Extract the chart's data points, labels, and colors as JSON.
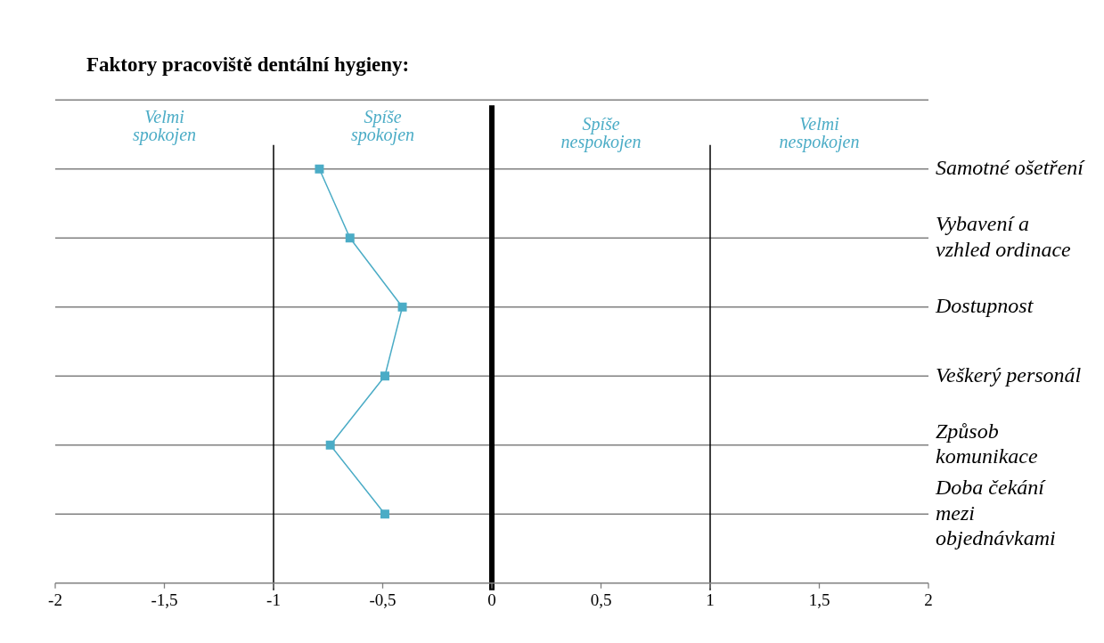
{
  "chart_data": {
    "type": "line",
    "orientation": "horizontal",
    "title": "Faktory pracoviště dentální hygieny:",
    "categories": [
      "Samotné ošetření",
      "Vybavení a vzhled ordinace",
      "Dostupnost",
      "Veškerý personál",
      "Způsob komunikace",
      "Doba čekání mezi objednávkami"
    ],
    "values": [
      -0.79,
      -0.65,
      -0.41,
      -0.49,
      -0.74,
      -0.49
    ],
    "color": "#4bacc6",
    "marker": "square",
    "line_style": "solid",
    "grid": "y",
    "legend": false,
    "xlim": [
      -2,
      2
    ],
    "xticks": [
      -2,
      {
        "value": -1.5,
        "label": "-1,5"
      },
      -1,
      {
        "value": -0.5,
        "label": "-0,5"
      },
      0,
      {
        "value": 0.5,
        "label": "0,5"
      },
      1,
      {
        "value": 1.5,
        "label": "1,5"
      },
      2
    ],
    "ref_lines": [
      {
        "axis": "x",
        "value": -1,
        "color": "#000000"
      },
      {
        "axis": "x",
        "value": 0,
        "color": "#000000"
      },
      {
        "axis": "x",
        "value": 1,
        "color": "#000000"
      }
    ],
    "annotations": [
      "Velmi spokojen",
      "Spíše spokojen",
      "Spíše nespokojen",
      "Velmi nespokojen"
    ]
  }
}
